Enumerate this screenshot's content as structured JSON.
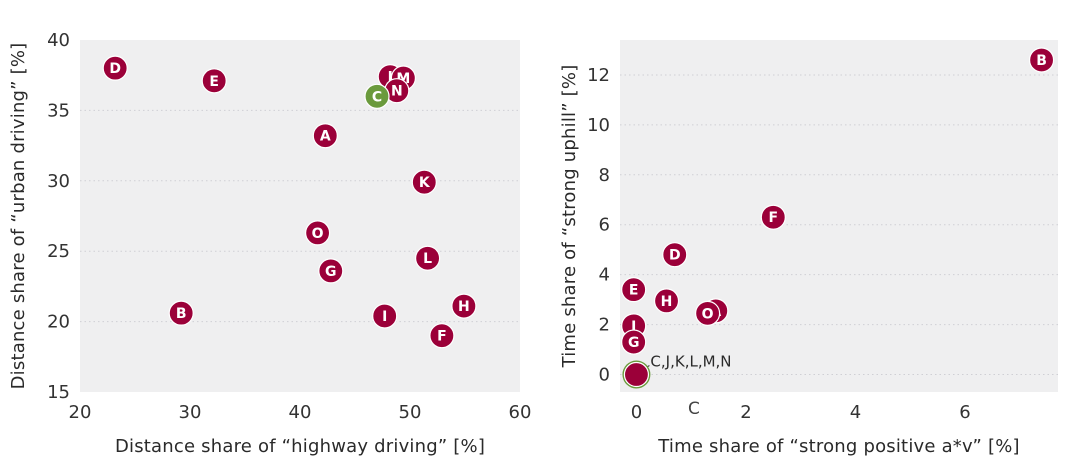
{
  "colors": {
    "point": "#9b0039",
    "highlight": "#6a9a3c",
    "panel_background": "#efeff0",
    "grid": "#cfcfd4",
    "text": "#333333"
  },
  "chart_data": [
    {
      "type": "scatter",
      "title": "",
      "xlabel": "Distance share of “highway driving” [%]",
      "ylabel": "Distance share of “urban driving” [%]",
      "xlim": [
        20,
        60
      ],
      "ylim": [
        15,
        40
      ],
      "xticks": [
        "20",
        "30",
        "40",
        "50",
        "60"
      ],
      "yticks": [
        "15",
        "20",
        "25",
        "30",
        "35",
        "40"
      ],
      "grid": "horizontal dotted",
      "legend": "none",
      "points": [
        {
          "label": "D",
          "x": 23.2,
          "y": 38.0,
          "color": "#9b0039"
        },
        {
          "label": "E",
          "x": 32.2,
          "y": 37.1,
          "color": "#9b0039"
        },
        {
          "label": "J",
          "x": 48.2,
          "y": 37.4,
          "color": "#9b0039"
        },
        {
          "label": "M",
          "x": 49.4,
          "y": 37.3,
          "color": "#9b0039"
        },
        {
          "label": "N",
          "x": 48.8,
          "y": 36.4,
          "color": "#9b0039"
        },
        {
          "label": "C",
          "x": 47.0,
          "y": 36.0,
          "color": "#6a9a3c"
        },
        {
          "label": "A",
          "x": 42.3,
          "y": 33.2,
          "color": "#9b0039"
        },
        {
          "label": "K",
          "x": 51.3,
          "y": 29.9,
          "color": "#9b0039"
        },
        {
          "label": "O",
          "x": 41.6,
          "y": 26.3,
          "color": "#9b0039"
        },
        {
          "label": "L",
          "x": 51.6,
          "y": 24.5,
          "color": "#9b0039"
        },
        {
          "label": "G",
          "x": 42.8,
          "y": 23.6,
          "color": "#9b0039"
        },
        {
          "label": "B",
          "x": 29.2,
          "y": 20.6,
          "color": "#9b0039"
        },
        {
          "label": "I",
          "x": 47.7,
          "y": 20.4,
          "color": "#9b0039"
        },
        {
          "label": "H",
          "x": 54.9,
          "y": 21.1,
          "color": "#9b0039"
        },
        {
          "label": "F",
          "x": 52.9,
          "y": 19.0,
          "color": "#9b0039"
        }
      ]
    },
    {
      "type": "scatter",
      "title": "",
      "xlabel": "Time share of “strong positive a*v” [%]",
      "ylabel": "Time share of “strong uphill” [%]",
      "xlim": [
        -0.3,
        7.7
      ],
      "ylim": [
        -0.7,
        13.4
      ],
      "xticks": [
        "0",
        "2",
        "4",
        "6"
      ],
      "yticks": [
        "0",
        "2",
        "4",
        "6",
        "8",
        "10",
        "12"
      ],
      "grid": "horizontal dotted",
      "legend": "none",
      "below_axis_label": "C",
      "annotation": "C,J,K,L,M,N",
      "points": [
        {
          "label": "",
          "x": 0.0,
          "y": 0.0,
          "color": "#9b0039",
          "highlight_ring": "#6a9a3c"
        },
        {
          "label": "B",
          "x": 7.4,
          "y": 12.6,
          "color": "#9b0039"
        },
        {
          "label": "F",
          "x": 2.5,
          "y": 6.3,
          "color": "#9b0039"
        },
        {
          "label": "D",
          "x": 0.7,
          "y": 4.8,
          "color": "#9b0039"
        },
        {
          "label": "E",
          "x": -0.05,
          "y": 3.4,
          "color": "#9b0039"
        },
        {
          "label": "H",
          "x": 0.55,
          "y": 2.95,
          "color": "#9b0039"
        },
        {
          "label": "A",
          "x": 1.45,
          "y": 2.55,
          "color": "#9b0039"
        },
        {
          "label": "O",
          "x": 1.3,
          "y": 2.45,
          "color": "#9b0039"
        },
        {
          "label": "I",
          "x": -0.05,
          "y": 1.95,
          "color": "#9b0039"
        },
        {
          "label": "G",
          "x": -0.05,
          "y": 1.3,
          "color": "#9b0039"
        }
      ]
    }
  ]
}
